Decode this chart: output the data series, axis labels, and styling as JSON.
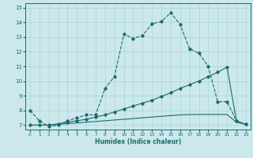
{
  "xlabel": "Humidex (Indice chaleur)",
  "background_color": "#cce8ec",
  "grid_color": "#a8d4d8",
  "line_color": "#1a6b6b",
  "xlim": [
    -0.5,
    23.5
  ],
  "ylim": [
    6.7,
    15.3
  ],
  "yticks": [
    7,
    8,
    9,
    10,
    11,
    12,
    13,
    14,
    15
  ],
  "xticks": [
    0,
    1,
    2,
    3,
    4,
    5,
    6,
    7,
    8,
    9,
    10,
    11,
    12,
    13,
    14,
    15,
    16,
    17,
    18,
    19,
    20,
    21,
    22,
    23
  ],
  "curve1_x": [
    0,
    1,
    2,
    3,
    4,
    5,
    6,
    7,
    8,
    9,
    10,
    11,
    12,
    13,
    14,
    15,
    16,
    17,
    18,
    19,
    20,
    21,
    22,
    23
  ],
  "curve1_y": [
    8.0,
    7.3,
    6.9,
    7.0,
    7.3,
    7.5,
    7.7,
    7.7,
    9.5,
    10.3,
    13.2,
    12.9,
    13.1,
    13.9,
    14.05,
    14.65,
    13.85,
    12.2,
    11.9,
    11.0,
    8.6,
    8.6,
    7.3,
    7.05
  ],
  "curve2_x": [
    0,
    1,
    2,
    3,
    4,
    5,
    6,
    7,
    8,
    9,
    10,
    11,
    12,
    13,
    14,
    15,
    16,
    17,
    18,
    19,
    20,
    21,
    22,
    23
  ],
  "curve2_y": [
    7.0,
    7.0,
    7.0,
    7.1,
    7.2,
    7.3,
    7.4,
    7.55,
    7.7,
    7.9,
    8.1,
    8.3,
    8.5,
    8.7,
    8.95,
    9.2,
    9.5,
    9.75,
    10.0,
    10.3,
    10.6,
    10.95,
    7.3,
    7.05
  ],
  "curve3_x": [
    0,
    1,
    2,
    3,
    4,
    5,
    6,
    7,
    8,
    9,
    10,
    11,
    12,
    13,
    14,
    15,
    16,
    17,
    18,
    19,
    20,
    21,
    22,
    23
  ],
  "curve3_y": [
    7.0,
    7.0,
    7.0,
    7.05,
    7.1,
    7.15,
    7.2,
    7.25,
    7.3,
    7.35,
    7.4,
    7.45,
    7.5,
    7.55,
    7.6,
    7.65,
    7.7,
    7.72,
    7.73,
    7.73,
    7.73,
    7.73,
    7.2,
    7.05
  ]
}
